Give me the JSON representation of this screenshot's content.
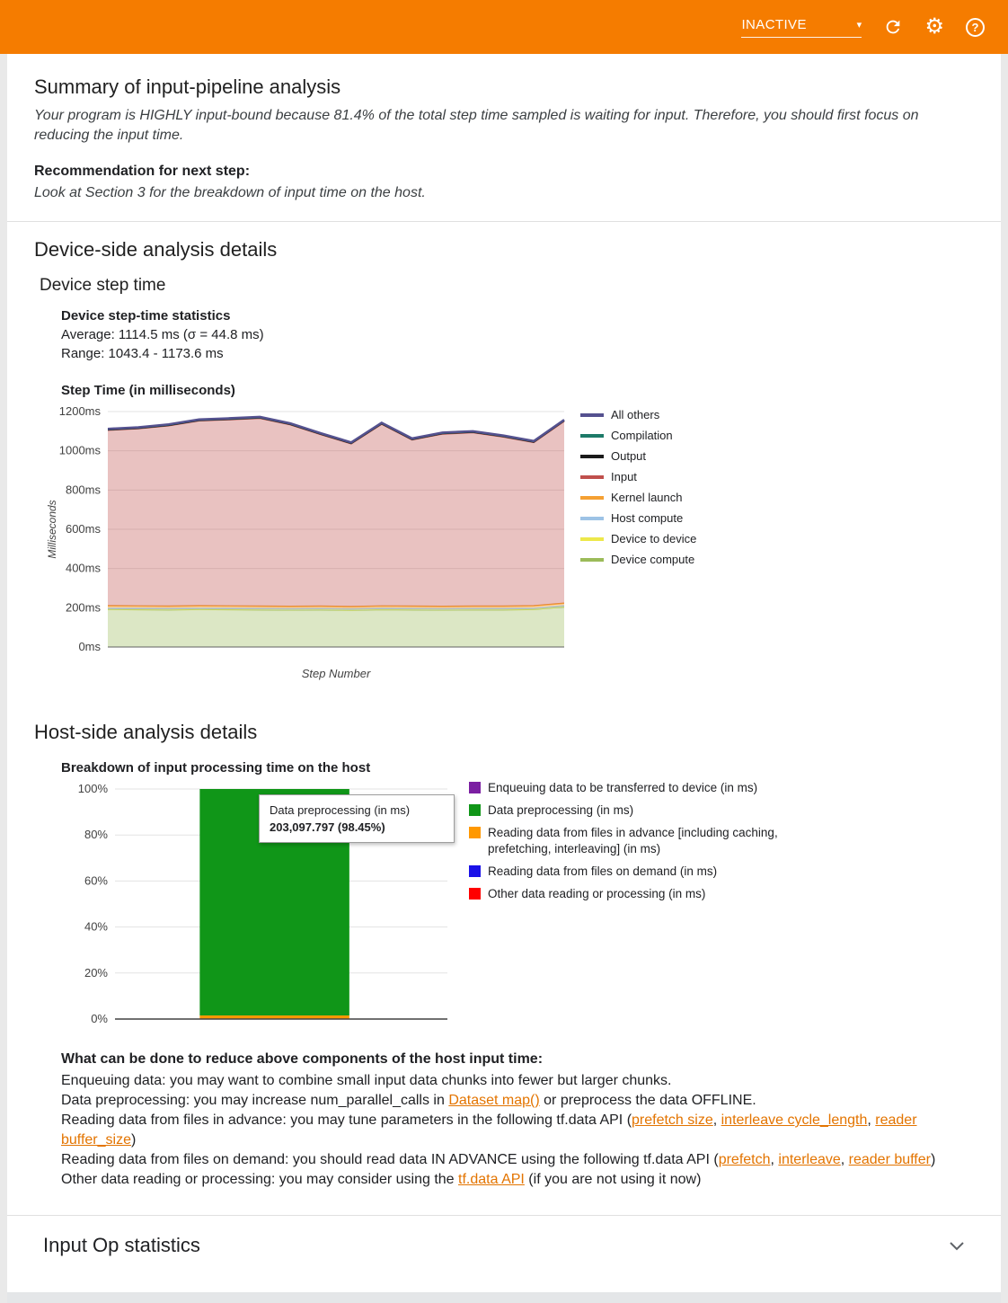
{
  "header": {
    "status": "INACTIVE",
    "accent_color": "#F57C00"
  },
  "icons": {
    "dropdown_arrow": "▾",
    "gear": "⚙",
    "help": "?"
  },
  "summary": {
    "title": "Summary of input-pipeline analysis",
    "body": "Your program is HIGHLY input-bound because 81.4% of the total step time sampled is waiting for input. Therefore, you should first focus on reducing the input time.",
    "recommendation_label": "Recommendation for next step:",
    "recommendation_body": "Look at Section 3 for the breakdown of input time on the host."
  },
  "device": {
    "section_title": "Device-side analysis details",
    "subsection_title": "Device step time",
    "stats_title": "Device step-time statistics",
    "average": "Average: 1114.5 ms (σ = 44.8 ms)",
    "range": "Range: 1043.4 - 1173.6 ms",
    "chart_title": "Step Time (in milliseconds)"
  },
  "host": {
    "section_title": "Host-side analysis details",
    "chart_title": "Breakdown of input processing time on the host",
    "tooltip": {
      "label": "Data preprocessing (in ms)",
      "value": "203,097.797 (98.45%)"
    },
    "advice_title": "What can be done to reduce above components of the host input time:",
    "advice_lines": [
      [
        {
          "t": "Enqueuing data: you may want to combine small input data chunks into fewer but larger chunks."
        }
      ],
      [
        {
          "t": "Data preprocessing: you may increase num_parallel_calls in "
        },
        {
          "t": "Dataset map()",
          "link": true
        },
        {
          "t": " or preprocess the data OFFLINE."
        }
      ],
      [
        {
          "t": "Reading data from files in advance: you may tune parameters in the following tf.data API ("
        },
        {
          "t": "prefetch size",
          "link": true
        },
        {
          "t": ", "
        },
        {
          "t": "interleave cycle_length",
          "link": true
        },
        {
          "t": ", "
        },
        {
          "t": "reader buffer_size",
          "link": true
        },
        {
          "t": ")"
        }
      ],
      [
        {
          "t": "Reading data from files on demand: you should read data IN ADVANCE using the following tf.data API ("
        },
        {
          "t": "prefetch",
          "link": true
        },
        {
          "t": ", "
        },
        {
          "t": "interleave",
          "link": true
        },
        {
          "t": ", "
        },
        {
          "t": "reader buffer",
          "link": true
        },
        {
          "t": ")"
        }
      ],
      [
        {
          "t": "Other data reading or processing: you may consider using the "
        },
        {
          "t": "tf.data API",
          "link": true
        },
        {
          "t": " (if you are not using it now)"
        }
      ]
    ]
  },
  "input_op": {
    "title": "Input Op statistics"
  },
  "chart_data": [
    {
      "id": "device-step-time",
      "type": "area",
      "title": "Step Time (in milliseconds)",
      "xlabel": "Step Number",
      "ylabel": "Milliseconds",
      "ylim": [
        0,
        1200
      ],
      "ytick_step": 200,
      "ytick_suffix": "ms",
      "grid": true,
      "legend_position": "right",
      "stats": {
        "average_ms": 1114.5,
        "sigma_ms": 44.8,
        "range_ms": [
          1043.4,
          1173.6
        ]
      },
      "series_bottom_to_top": [
        {
          "name": "Device compute",
          "color": "#9BBB59",
          "values": [
            192,
            191,
            190,
            192,
            191,
            190,
            189,
            190,
            188,
            191,
            190,
            189,
            190,
            190,
            192,
            205
          ]
        },
        {
          "name": "Device to device",
          "color": "#EDE84A",
          "values": [
            2,
            2,
            2,
            2,
            2,
            2,
            2,
            2,
            2,
            2,
            2,
            2,
            2,
            2,
            2,
            2
          ]
        },
        {
          "name": "Host compute",
          "color": "#9DC3E6",
          "values": [
            3,
            3,
            3,
            3,
            3,
            3,
            3,
            3,
            3,
            3,
            3,
            3,
            3,
            3,
            3,
            3
          ]
        },
        {
          "name": "Kernel launch",
          "color": "#F5A033",
          "values": [
            13,
            13,
            13,
            13,
            13,
            13,
            13,
            13,
            13,
            13,
            13,
            13,
            13,
            13,
            13,
            13
          ]
        },
        {
          "name": "Input",
          "color": "#C0504D",
          "values": [
            895,
            904,
            920,
            943,
            950,
            958,
            926,
            875,
            830,
            927,
            848,
            879,
            885,
            863,
            833,
            928
          ]
        },
        {
          "name": "Output",
          "color": "#1A1A1A",
          "values": [
            2,
            2,
            2,
            2,
            2,
            2,
            2,
            2,
            2,
            2,
            2,
            2,
            2,
            2,
            2,
            2
          ]
        },
        {
          "name": "Compilation",
          "color": "#1D7A68",
          "values": [
            2,
            2,
            2,
            2,
            2,
            2,
            2,
            2,
            2,
            2,
            2,
            2,
            2,
            2,
            2,
            2
          ]
        },
        {
          "name": "All others",
          "color": "#55518F",
          "values": [
            3,
            3,
            3,
            3,
            3,
            3,
            3,
            3,
            3,
            3,
            3,
            3,
            3,
            3,
            3,
            3
          ]
        }
      ],
      "legend_top_to_bottom": [
        "All others",
        "Compilation",
        "Output",
        "Input",
        "Kernel launch",
        "Host compute",
        "Device to device",
        "Device compute"
      ]
    },
    {
      "id": "host-input-breakdown",
      "type": "stacked-bar-percent",
      "title": "Breakdown of input processing time on the host",
      "ytick_labels": [
        "0%",
        "20%",
        "40%",
        "60%",
        "80%",
        "100%"
      ],
      "bar": {
        "segments_bottom_to_top": [
          {
            "name": "Reading data from files in advance [including caching, prefetching, interleaving] (in ms)",
            "color": "#FF9800",
            "percent": 1.55
          },
          {
            "name": "Data preprocessing (in ms)",
            "color": "#109618",
            "percent": 98.45,
            "value_ms": 203097.797
          }
        ]
      },
      "legend": [
        {
          "label": "Enqueuing data to be transferred to device (in ms)",
          "color": "#7B1FA2"
        },
        {
          "label": "Data preprocessing (in ms)",
          "color": "#109618"
        },
        {
          "label": "Reading data from files in advance [including caching, prefetching, interleaving] (in ms)",
          "color": "#FF9800"
        },
        {
          "label": "Reading data from files on demand (in ms)",
          "color": "#1A11E8"
        },
        {
          "label": "Other data reading or processing (in ms)",
          "color": "#FF0000"
        }
      ]
    }
  ]
}
